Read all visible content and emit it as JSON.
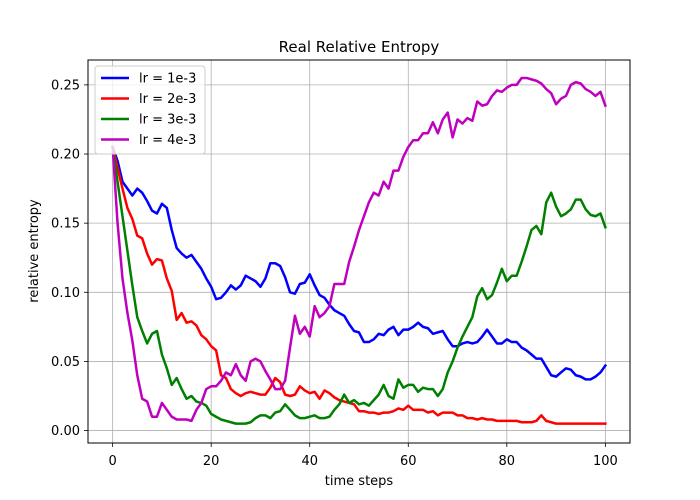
{
  "chart_data": {
    "type": "line",
    "title": "Real Relative Entropy",
    "xlabel": "time steps",
    "ylabel": "relative entropy",
    "xlim": [
      -5,
      105
    ],
    "ylim": [
      -0.009,
      0.268
    ],
    "xticks": [
      0,
      20,
      40,
      60,
      80,
      100
    ],
    "xtick_labels": [
      "0",
      "20",
      "40",
      "60",
      "80",
      "100"
    ],
    "yticks": [
      0.0,
      0.05,
      0.1,
      0.15,
      0.2,
      0.25
    ],
    "ytick_labels": [
      "0.00",
      "0.05",
      "0.10",
      "0.15",
      "0.20",
      "0.25"
    ],
    "grid": true,
    "legend_position": "top-left",
    "x": [
      0,
      1,
      2,
      3,
      4,
      5,
      6,
      7,
      8,
      9,
      10,
      11,
      12,
      13,
      14,
      15,
      16,
      17,
      18,
      19,
      20,
      21,
      22,
      23,
      24,
      25,
      26,
      27,
      28,
      29,
      30,
      31,
      32,
      33,
      34,
      35,
      36,
      37,
      38,
      39,
      40,
      41,
      42,
      43,
      44,
      45,
      46,
      47,
      48,
      49,
      50,
      51,
      52,
      53,
      54,
      55,
      56,
      57,
      58,
      59,
      60,
      61,
      62,
      63,
      64,
      65,
      66,
      67,
      68,
      69,
      70,
      71,
      72,
      73,
      74,
      75,
      76,
      77,
      78,
      79,
      80,
      81,
      82,
      83,
      84,
      85,
      86,
      87,
      88,
      89,
      90,
      91,
      92,
      93,
      94,
      95,
      96,
      97,
      98,
      99,
      100
    ],
    "series": [
      {
        "name": "lr = 1e-3",
        "color": "#0000ff",
        "values": [
          0.205,
          0.195,
          0.18,
          0.175,
          0.17,
          0.175,
          0.172,
          0.166,
          0.159,
          0.157,
          0.164,
          0.161,
          0.145,
          0.132,
          0.128,
          0.125,
          0.127,
          0.122,
          0.117,
          0.11,
          0.104,
          0.095,
          0.096,
          0.1,
          0.105,
          0.102,
          0.105,
          0.112,
          0.11,
          0.108,
          0.104,
          0.11,
          0.121,
          0.121,
          0.119,
          0.111,
          0.1,
          0.099,
          0.106,
          0.107,
          0.113,
          0.105,
          0.098,
          0.096,
          0.091,
          0.087,
          0.085,
          0.083,
          0.077,
          0.072,
          0.071,
          0.064,
          0.064,
          0.066,
          0.07,
          0.069,
          0.073,
          0.075,
          0.069,
          0.073,
          0.073,
          0.075,
          0.078,
          0.075,
          0.074,
          0.07,
          0.071,
          0.072,
          0.066,
          0.061,
          0.061,
          0.063,
          0.064,
          0.063,
          0.064,
          0.068,
          0.073,
          0.068,
          0.063,
          0.063,
          0.066,
          0.064,
          0.064,
          0.06,
          0.058,
          0.055,
          0.052,
          0.052,
          0.046,
          0.04,
          0.039,
          0.042,
          0.045,
          0.044,
          0.04,
          0.039,
          0.037,
          0.037,
          0.039,
          0.042,
          0.047
        ]
      },
      {
        "name": "lr = 2e-3",
        "color": "#ff0000",
        "values": [
          0.205,
          0.19,
          0.175,
          0.161,
          0.153,
          0.141,
          0.139,
          0.128,
          0.12,
          0.124,
          0.123,
          0.11,
          0.101,
          0.08,
          0.085,
          0.078,
          0.079,
          0.076,
          0.069,
          0.066,
          0.061,
          0.058,
          0.04,
          0.038,
          0.03,
          0.027,
          0.025,
          0.027,
          0.028,
          0.027,
          0.026,
          0.026,
          0.031,
          0.038,
          0.035,
          0.026,
          0.025,
          0.026,
          0.032,
          0.029,
          0.027,
          0.028,
          0.023,
          0.029,
          0.027,
          0.024,
          0.022,
          0.021,
          0.02,
          0.019,
          0.014,
          0.014,
          0.013,
          0.013,
          0.012,
          0.013,
          0.013,
          0.014,
          0.016,
          0.015,
          0.018,
          0.015,
          0.015,
          0.015,
          0.013,
          0.014,
          0.011,
          0.013,
          0.013,
          0.013,
          0.011,
          0.011,
          0.009,
          0.009,
          0.008,
          0.009,
          0.008,
          0.008,
          0.007,
          0.007,
          0.007,
          0.007,
          0.007,
          0.006,
          0.006,
          0.006,
          0.007,
          0.011,
          0.007,
          0.006,
          0.005,
          0.005,
          0.005,
          0.005,
          0.005,
          0.005,
          0.005,
          0.005,
          0.005,
          0.005,
          0.005
        ]
      },
      {
        "name": "lr = 3e-3",
        "color": "#008000",
        "values": [
          0.205,
          0.18,
          0.155,
          0.13,
          0.105,
          0.082,
          0.072,
          0.063,
          0.07,
          0.072,
          0.055,
          0.045,
          0.033,
          0.038,
          0.03,
          0.023,
          0.025,
          0.021,
          0.02,
          0.018,
          0.012,
          0.01,
          0.008,
          0.007,
          0.006,
          0.005,
          0.005,
          0.005,
          0.006,
          0.009,
          0.011,
          0.011,
          0.009,
          0.013,
          0.014,
          0.019,
          0.015,
          0.011,
          0.009,
          0.009,
          0.01,
          0.011,
          0.009,
          0.009,
          0.01,
          0.015,
          0.019,
          0.026,
          0.02,
          0.022,
          0.019,
          0.02,
          0.018,
          0.022,
          0.026,
          0.033,
          0.025,
          0.023,
          0.037,
          0.031,
          0.033,
          0.033,
          0.028,
          0.031,
          0.03,
          0.03,
          0.025,
          0.03,
          0.042,
          0.05,
          0.06,
          0.068,
          0.075,
          0.082,
          0.097,
          0.103,
          0.095,
          0.098,
          0.107,
          0.117,
          0.108,
          0.112,
          0.112,
          0.122,
          0.133,
          0.145,
          0.148,
          0.142,
          0.165,
          0.172,
          0.162,
          0.155,
          0.157,
          0.16,
          0.167,
          0.167,
          0.16,
          0.156,
          0.155,
          0.157,
          0.147
        ]
      },
      {
        "name": "lr = 4e-3",
        "color": "#bf00bf",
        "values": [
          0.205,
          0.15,
          0.11,
          0.085,
          0.065,
          0.04,
          0.023,
          0.021,
          0.01,
          0.01,
          0.02,
          0.015,
          0.01,
          0.008,
          0.008,
          0.008,
          0.007,
          0.015,
          0.02,
          0.03,
          0.032,
          0.032,
          0.036,
          0.042,
          0.04,
          0.048,
          0.04,
          0.036,
          0.05,
          0.052,
          0.05,
          0.043,
          0.037,
          0.03,
          0.03,
          0.036,
          0.06,
          0.083,
          0.07,
          0.075,
          0.068,
          0.09,
          0.082,
          0.085,
          0.09,
          0.106,
          0.106,
          0.106,
          0.122,
          0.133,
          0.145,
          0.155,
          0.165,
          0.172,
          0.17,
          0.18,
          0.175,
          0.188,
          0.188,
          0.198,
          0.205,
          0.21,
          0.21,
          0.215,
          0.215,
          0.223,
          0.215,
          0.225,
          0.23,
          0.212,
          0.225,
          0.222,
          0.226,
          0.224,
          0.238,
          0.235,
          0.236,
          0.242,
          0.246,
          0.245,
          0.248,
          0.25,
          0.25,
          0.255,
          0.255,
          0.254,
          0.253,
          0.251,
          0.247,
          0.244,
          0.236,
          0.24,
          0.242,
          0.25,
          0.252,
          0.251,
          0.247,
          0.245,
          0.242,
          0.245,
          0.235
        ]
      }
    ]
  }
}
